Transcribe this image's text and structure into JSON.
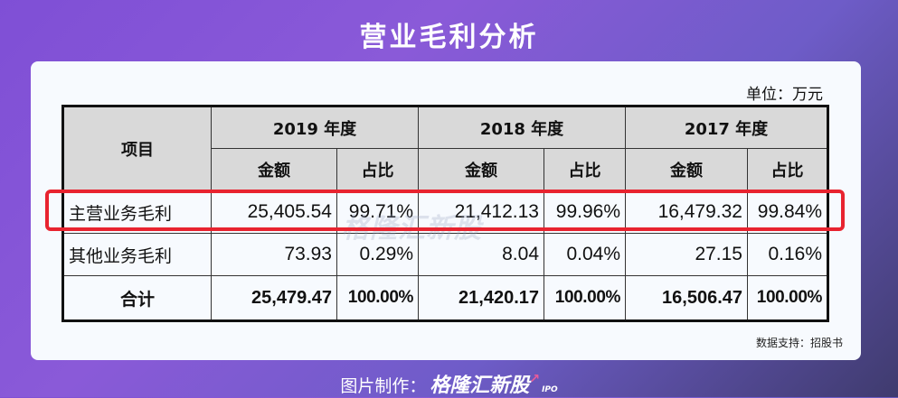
{
  "header": {
    "title": "营业毛利分析"
  },
  "table": {
    "unit": "单位：万元",
    "header": {
      "item": "项目",
      "years": [
        "2019 年度",
        "2018 年度",
        "2017 年度"
      ],
      "sub": [
        "金额",
        "占比",
        "金额",
        "占比",
        "金额",
        "占比"
      ]
    },
    "rows": [
      {
        "label": "主营业务毛利",
        "cells": [
          "25,405.54",
          "99.71%",
          "21,412.13",
          "99.96%",
          "16,479.32",
          "99.84%"
        ]
      },
      {
        "label": "其他业务毛利",
        "cells": [
          "73.93",
          "0.29%",
          "8.04",
          "0.04%",
          "27.15",
          "0.16%"
        ]
      },
      {
        "label": "合计",
        "cells": [
          "25,479.47",
          "100.00%",
          "21,420.17",
          "100.00%",
          "16,506.47",
          "100.00%"
        ]
      }
    ]
  },
  "source": "数据支持：招股书",
  "watermark": "格隆汇新股",
  "footer": {
    "prefix": "图片制作：",
    "brand": "格隆汇新股",
    "ipo": "IPO",
    "arrow": "↗"
  }
}
